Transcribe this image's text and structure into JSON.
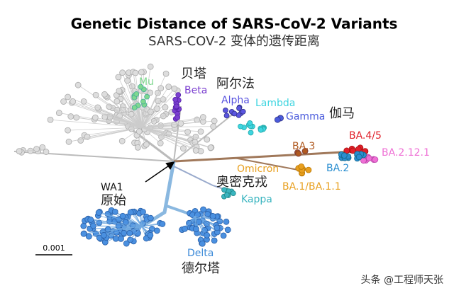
{
  "header": {
    "title": "Genetic Distance of SARS-CoV-2 Variants",
    "subtitle": "SARS-COV-2 变体的遗传距离"
  },
  "labels": [
    {
      "text": "Mu"
    },
    {
      "text": "贝塔"
    },
    {
      "text": "Beta"
    },
    {
      "text": "阿尔法"
    },
    {
      "text": "Alpha"
    },
    {
      "text": "Lambda"
    },
    {
      "text": "Gamma"
    },
    {
      "text": "伽马"
    },
    {
      "text": "BA.3"
    },
    {
      "text": "BA.4/5"
    },
    {
      "text": "BA.2.12.1"
    },
    {
      "text": "BA.2"
    },
    {
      "text": "Omicron"
    },
    {
      "text": "奥密克戎"
    },
    {
      "text": "BA.1/BA.1.1"
    },
    {
      "text": "Kappa"
    },
    {
      "text": "WA1"
    },
    {
      "text": "原始"
    },
    {
      "text": "Delta"
    },
    {
      "text": "德尔塔"
    }
  ],
  "scale_bar": "0.001",
  "watermark": "头条 @工程师天张"
}
